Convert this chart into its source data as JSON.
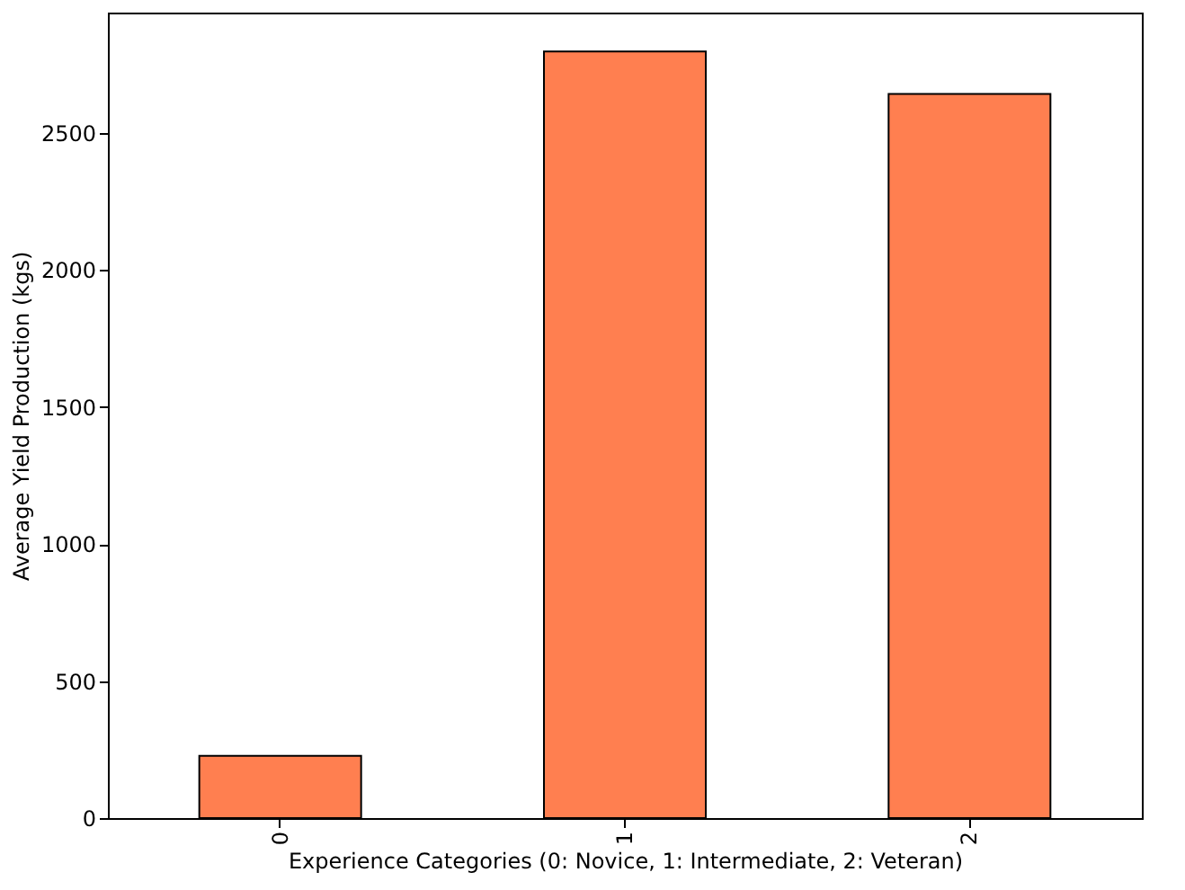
{
  "chart_data": {
    "type": "bar",
    "xlabel": "Experience Categories (0: Novice, 1: Intermediate, 2: Veteran)",
    "ylabel": "Average Yield Production (kgs)",
    "categories": [
      "0",
      "1",
      "2"
    ],
    "values": [
      227,
      2796,
      2641
    ],
    "color": "#ff7f50",
    "ylim": [
      0,
      2938
    ],
    "yticks": [
      0,
      500,
      1000,
      1500,
      2000,
      2500
    ],
    "grid": false
  }
}
